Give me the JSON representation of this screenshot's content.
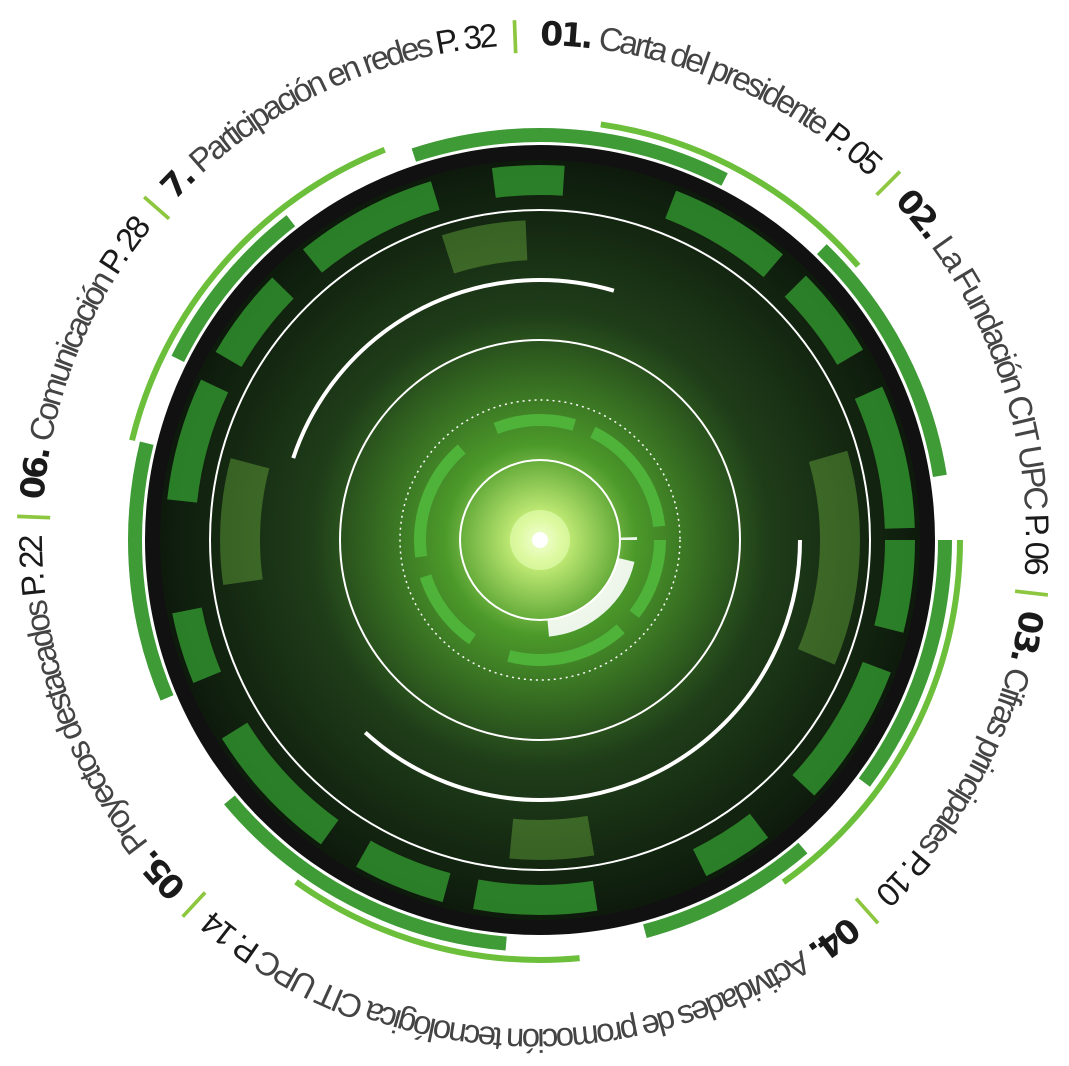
{
  "items": [
    {
      "number": "01.",
      "title": "Carta del presidente",
      "page": "P. 05"
    },
    {
      "number": "02.",
      "title": "La Fundación CIT UPC",
      "page": "P. 06"
    },
    {
      "number": "03.",
      "title": "Cifras principales",
      "page": "P. 10"
    },
    {
      "number": "04.",
      "title": "Actividades de promoción tecnológica CIT UPC",
      "page": "P. 14"
    },
    {
      "number": "05.",
      "title": "Proyectos destacados",
      "page": "P. 22"
    },
    {
      "number": "06.",
      "title": "Comunicación",
      "page": "P. 28"
    },
    {
      "number": "7.",
      "title": "Participación en redes",
      "page": "P. 32"
    }
  ],
  "separator": "|"
}
